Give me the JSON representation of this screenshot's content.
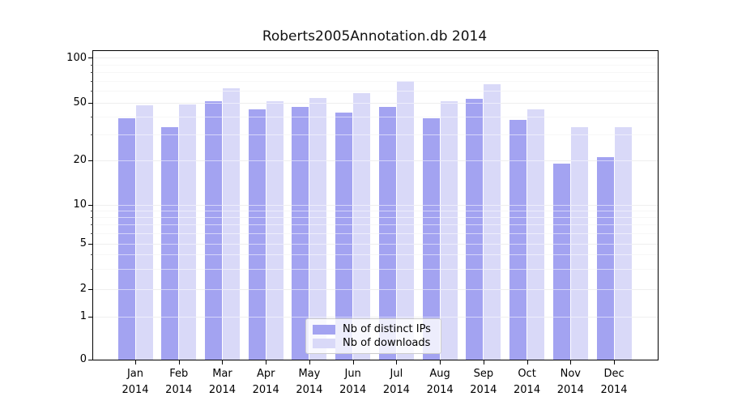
{
  "chart_data": {
    "type": "bar",
    "title": "Roberts2005Annotation.db 2014",
    "categories": [
      "Jan",
      "Feb",
      "Mar",
      "Apr",
      "May",
      "Jun",
      "Jul",
      "Aug",
      "Sep",
      "Oct",
      "Nov",
      "Dec"
    ],
    "category_year": "2014",
    "series": [
      {
        "name": "Nb of distinct IPs",
        "color": "#a3a3f1",
        "values": [
          39,
          34,
          51,
          45,
          47,
          43,
          47,
          39,
          53,
          38,
          19,
          21
        ]
      },
      {
        "name": "Nb of downloads",
        "color": "#d9d9f8",
        "values": [
          48,
          49,
          63,
          51,
          54,
          58,
          70,
          51,
          67,
          45,
          34,
          34
        ]
      }
    ],
    "xlabel": "",
    "ylabel": "",
    "yscale": "symlog",
    "ylim": [
      0,
      100
    ],
    "yticks_major": [
      0,
      1,
      2,
      5,
      10,
      20,
      50,
      100
    ],
    "yticks_minor": [
      3,
      4,
      6,
      7,
      8,
      9,
      30,
      40,
      60,
      70,
      80,
      90
    ],
    "grid": "both",
    "legend_position": "lower center"
  },
  "colors": {
    "series_dark": "#a3a3f1",
    "series_light": "#d9d9f8",
    "grid_major": "#dcdcdc",
    "grid_minor": "#ededed",
    "spine": "#000000"
  }
}
